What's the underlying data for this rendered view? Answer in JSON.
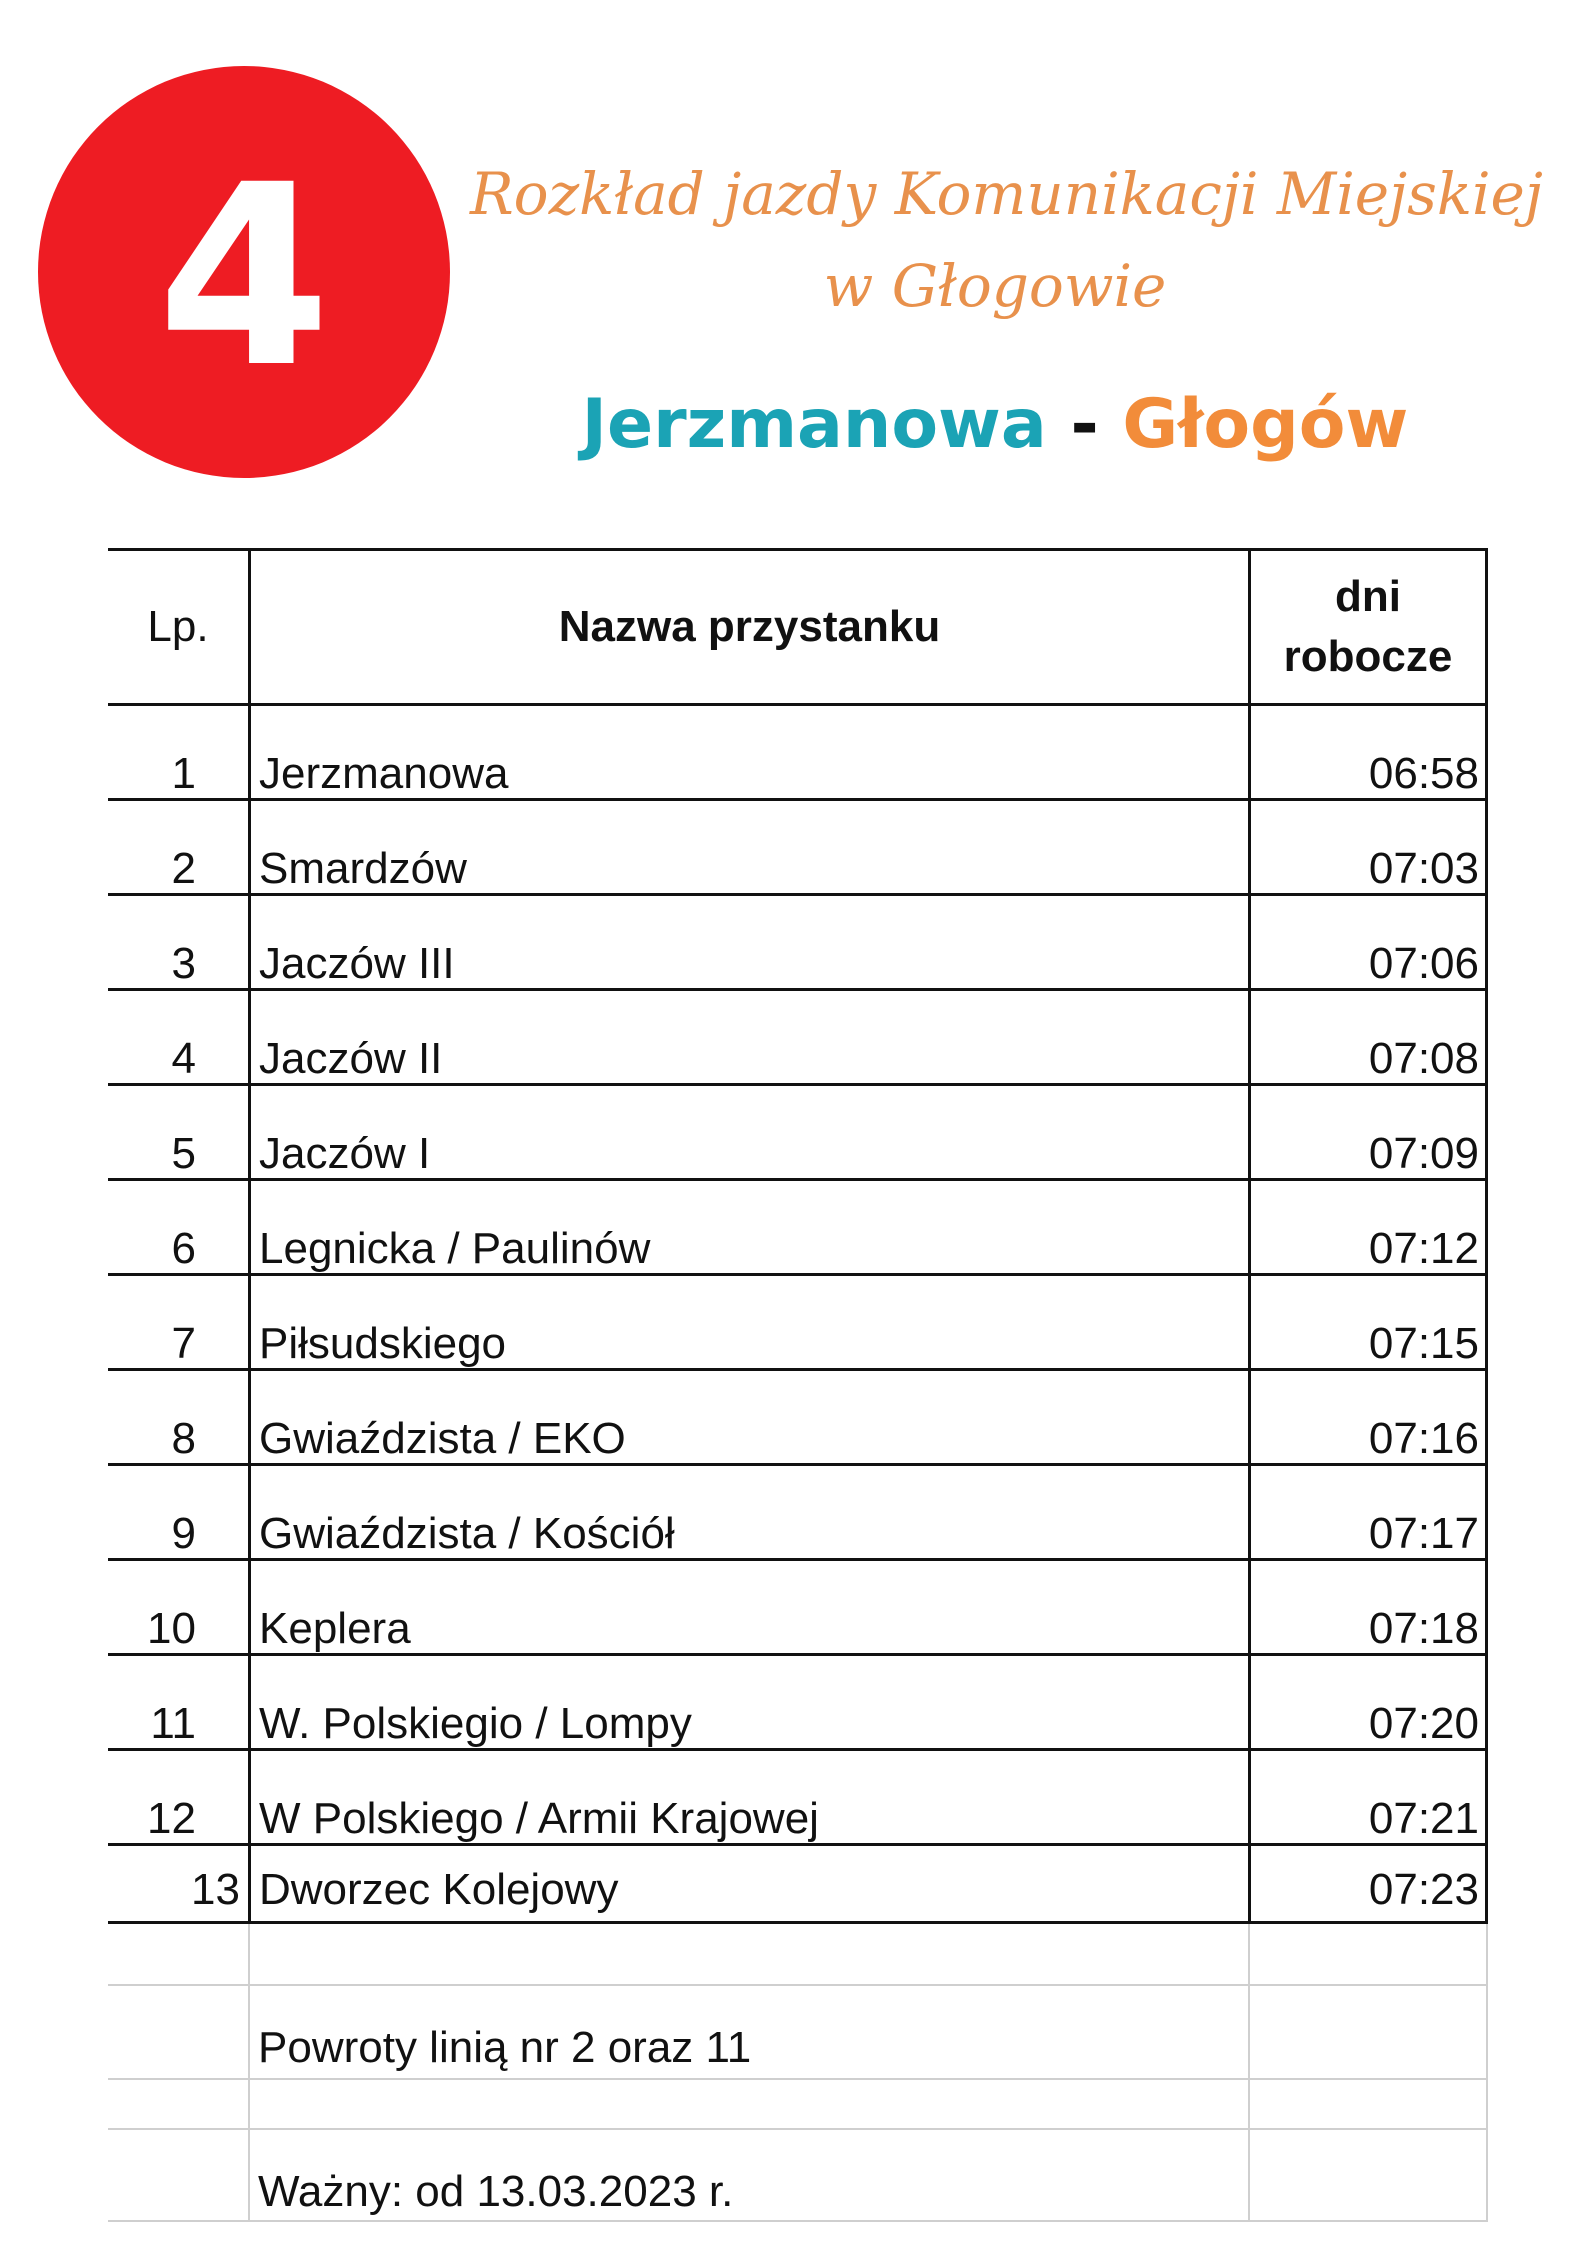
{
  "badge": {
    "number": "4",
    "color": "#ee1c23"
  },
  "header": {
    "subtitle_line1": "Rozkład jazdy Komunikacji Miejskiej",
    "subtitle_line2": "w Głogowie",
    "route_from": "Jerzmanowa",
    "route_separator": " - ",
    "route_to": "Głogów",
    "colors": {
      "subtitle": "#e8914c",
      "from": "#1ba3b5",
      "to": "#f28c3a"
    }
  },
  "table": {
    "col_lp": "Lp.",
    "col_stop": "Nazwa przystanku",
    "col_days_line1": "dni",
    "col_days_line2": "robocze",
    "rows": [
      {
        "lp": "1",
        "stop": "Jerzmanowa",
        "time": "06:58"
      },
      {
        "lp": "2",
        "stop": "Smardzów",
        "time": "07:03"
      },
      {
        "lp": "3",
        "stop": "Jaczów III",
        "time": "07:06"
      },
      {
        "lp": "4",
        "stop": "Jaczów II",
        "time": "07:08"
      },
      {
        "lp": "5",
        "stop": "Jaczów I",
        "time": "07:09"
      },
      {
        "lp": "6",
        "stop": "Legnicka / Paulinów",
        "time": "07:12"
      },
      {
        "lp": "7",
        "stop": "Piłsudskiego",
        "time": "07:15"
      },
      {
        "lp": "8",
        "stop": "Gwiaździsta / EKO",
        "time": "07:16"
      },
      {
        "lp": "9",
        "stop": "Gwiaździsta / Kościół",
        "time": "07:17"
      },
      {
        "lp": "10",
        "stop": "Keplera",
        "time": "07:18"
      },
      {
        "lp": "11",
        "stop": "W. Polskiegio / Lompy",
        "time": "07:20"
      },
      {
        "lp": "12",
        "stop": "W Polskiego / Armii Krajowej",
        "time": "07:21"
      },
      {
        "lp": "13",
        "stop": "Dworzec Kolejowy",
        "time": "07:23"
      }
    ],
    "note_returns": "Powroty linią nr 2 oraz 11",
    "note_valid": "Ważny: od 13.03.2023 r."
  }
}
